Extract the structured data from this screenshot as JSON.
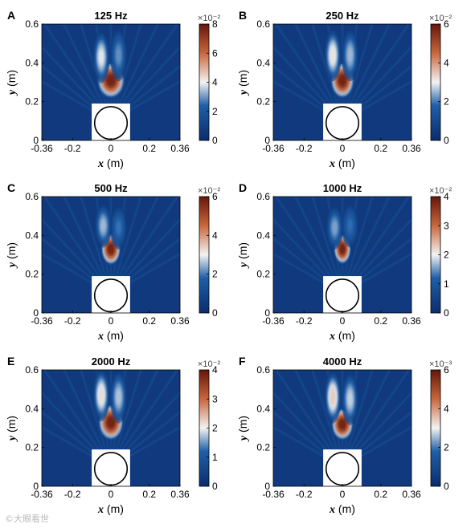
{
  "watermark": "©大眼看世",
  "colors": {
    "low": "#0a2d6e",
    "mid_low": "#1f5fa8",
    "mid": "#f3f3f3",
    "mid_high": "#c8673c",
    "high": "#67160a",
    "frame": "#000000"
  },
  "chart_data": [
    {
      "type": "heatmap",
      "panel": "A",
      "title": "125 Hz",
      "xlabel": "x",
      "xunit": "(m)",
      "ylabel": "y",
      "yunit": "(m)",
      "xlim": [
        -0.36,
        0.36
      ],
      "ylim": [
        0,
        0.6
      ],
      "xticks": [
        "-0.36",
        "-0.2",
        "0",
        "0.2",
        "0.36"
      ],
      "yticks": [
        "0",
        "0.2",
        "0.4",
        "0.6"
      ],
      "colorbar": {
        "min": 0,
        "max": 8,
        "ticks": [
          "0",
          "2",
          "4",
          "6",
          "8"
        ],
        "exponent": "×10⁻²"
      },
      "hotspots": [
        {
          "x": 0.0,
          "y": 0.31,
          "value": 8.0,
          "sx": 0.035,
          "sy": 0.045
        },
        {
          "x": -0.05,
          "y": 0.43,
          "value": 4.0,
          "sx": 0.02,
          "sy": 0.06
        },
        {
          "x": 0.04,
          "y": 0.44,
          "value": 3.0,
          "sx": 0.02,
          "sy": 0.06
        }
      ],
      "obstacle": {
        "x": [
          -0.1,
          0.1
        ],
        "y": [
          0,
          0.19
        ],
        "circle_center": [
          0,
          0.09
        ],
        "circle_radius": 0.085
      }
    },
    {
      "type": "heatmap",
      "panel": "B",
      "title": "250 Hz",
      "xlabel": "x",
      "xunit": "(m)",
      "ylabel": "y",
      "yunit": "(m)",
      "xlim": [
        -0.36,
        0.36
      ],
      "ylim": [
        0,
        0.6
      ],
      "xticks": [
        "-0.36",
        "-0.2",
        "0",
        "0.2",
        "0.36"
      ],
      "yticks": [
        "0",
        "0.2",
        "0.4",
        "0.6"
      ],
      "colorbar": {
        "min": 0,
        "max": 6,
        "ticks": [
          "0",
          "2",
          "4",
          "6"
        ],
        "exponent": "×10⁻²"
      },
      "hotspots": [
        {
          "x": 0.0,
          "y": 0.31,
          "value": 6.0,
          "sx": 0.03,
          "sy": 0.045
        },
        {
          "x": -0.05,
          "y": 0.44,
          "value": 3.2,
          "sx": 0.02,
          "sy": 0.06
        },
        {
          "x": 0.04,
          "y": 0.44,
          "value": 2.6,
          "sx": 0.02,
          "sy": 0.06
        }
      ],
      "obstacle": {
        "x": [
          -0.1,
          0.1
        ],
        "y": [
          0,
          0.19
        ],
        "circle_center": [
          0,
          0.09
        ],
        "circle_radius": 0.085
      }
    },
    {
      "type": "heatmap",
      "panel": "C",
      "title": "500 Hz",
      "xlabel": "x",
      "xunit": "(m)",
      "ylabel": "y",
      "yunit": "(m)",
      "xlim": [
        -0.36,
        0.36
      ],
      "ylim": [
        0,
        0.6
      ],
      "xticks": [
        "-0.36",
        "-0.2",
        "0",
        "0.2",
        "0.36"
      ],
      "yticks": [
        "0",
        "0.2",
        "0.4",
        "0.6"
      ],
      "colorbar": {
        "min": 0,
        "max": 6,
        "ticks": [
          "0",
          "2",
          "4",
          "6"
        ],
        "exponent": "×10⁻²"
      },
      "hotspots": [
        {
          "x": 0.0,
          "y": 0.33,
          "value": 6.0,
          "sx": 0.025,
          "sy": 0.04
        },
        {
          "x": -0.04,
          "y": 0.45,
          "value": 2.6,
          "sx": 0.02,
          "sy": 0.05
        },
        {
          "x": 0.04,
          "y": 0.44,
          "value": 2.0,
          "sx": 0.02,
          "sy": 0.05
        }
      ],
      "obstacle": {
        "x": [
          -0.1,
          0.1
        ],
        "y": [
          0,
          0.19
        ],
        "circle_center": [
          0,
          0.09
        ],
        "circle_radius": 0.085
      }
    },
    {
      "type": "heatmap",
      "panel": "D",
      "title": "1000 Hz",
      "xlabel": "x",
      "xunit": "(m)",
      "ylabel": "y",
      "yunit": "(m)",
      "xlim": [
        -0.36,
        0.36
      ],
      "ylim": [
        0,
        0.6
      ],
      "xticks": [
        "-0.36",
        "-0.2",
        "0",
        "0.2",
        "0.36"
      ],
      "yticks": [
        "0",
        "0.2",
        "0.4",
        "0.6"
      ],
      "colorbar": {
        "min": 0,
        "max": 4,
        "ticks": [
          "0",
          "1",
          "2",
          "3",
          "4"
        ],
        "exponent": "×10⁻²"
      },
      "hotspots": [
        {
          "x": 0.0,
          "y": 0.33,
          "value": 4.0,
          "sx": 0.022,
          "sy": 0.038
        },
        {
          "x": -0.04,
          "y": 0.44,
          "value": 1.6,
          "sx": 0.02,
          "sy": 0.05
        },
        {
          "x": 0.04,
          "y": 0.45,
          "value": 1.3,
          "sx": 0.02,
          "sy": 0.05
        }
      ],
      "obstacle": {
        "x": [
          -0.1,
          0.1
        ],
        "y": [
          0,
          0.19
        ],
        "circle_center": [
          0,
          0.09
        ],
        "circle_radius": 0.085
      }
    },
    {
      "type": "heatmap",
      "panel": "E",
      "title": "2000 Hz",
      "xlabel": "x",
      "xunit": "(m)",
      "ylabel": "y",
      "yunit": "(m)",
      "xlim": [
        -0.36,
        0.36
      ],
      "ylim": [
        0,
        0.6
      ],
      "xticks": [
        "-0.36",
        "-0.2",
        "0",
        "0.2",
        "0.36"
      ],
      "yticks": [
        "0",
        "0.2",
        "0.4",
        "0.6"
      ],
      "colorbar": {
        "min": 0,
        "max": 4,
        "ticks": [
          "0",
          "1",
          "2",
          "3",
          "4"
        ],
        "exponent": "×10⁻²"
      },
      "hotspots": [
        {
          "x": 0.0,
          "y": 0.33,
          "value": 4.0,
          "sx": 0.032,
          "sy": 0.045
        },
        {
          "x": -0.05,
          "y": 0.47,
          "value": 2.2,
          "sx": 0.02,
          "sy": 0.06
        },
        {
          "x": 0.04,
          "y": 0.46,
          "value": 1.8,
          "sx": 0.02,
          "sy": 0.06
        }
      ],
      "obstacle": {
        "x": [
          -0.1,
          0.1
        ],
        "y": [
          0,
          0.19
        ],
        "circle_center": [
          0,
          0.09
        ],
        "circle_radius": 0.085
      }
    },
    {
      "type": "heatmap",
      "panel": "F",
      "title": "4000 Hz",
      "xlabel": "x",
      "xunit": "(m)",
      "ylabel": "y",
      "yunit": "(m)",
      "xlim": [
        -0.36,
        0.36
      ],
      "ylim": [
        0,
        0.6
      ],
      "xticks": [
        "-0.36",
        "-0.2",
        "0",
        "0.2",
        "0.36"
      ],
      "yticks": [
        "0",
        "0.2",
        "0.4",
        "0.6"
      ],
      "colorbar": {
        "min": 0,
        "max": 6,
        "ticks": [
          "0",
          "2",
          "4",
          "6"
        ],
        "exponent": "×10⁻³"
      },
      "hotspots": [
        {
          "x": 0.0,
          "y": 0.32,
          "value": 6.0,
          "sx": 0.028,
          "sy": 0.04
        },
        {
          "x": -0.05,
          "y": 0.46,
          "value": 3.5,
          "sx": 0.02,
          "sy": 0.06
        },
        {
          "x": 0.04,
          "y": 0.45,
          "value": 2.8,
          "sx": 0.02,
          "sy": 0.06
        }
      ],
      "obstacle": {
        "x": [
          -0.1,
          0.1
        ],
        "y": [
          0,
          0.19
        ],
        "circle_center": [
          0,
          0.09
        ],
        "circle_radius": 0.085
      }
    }
  ]
}
